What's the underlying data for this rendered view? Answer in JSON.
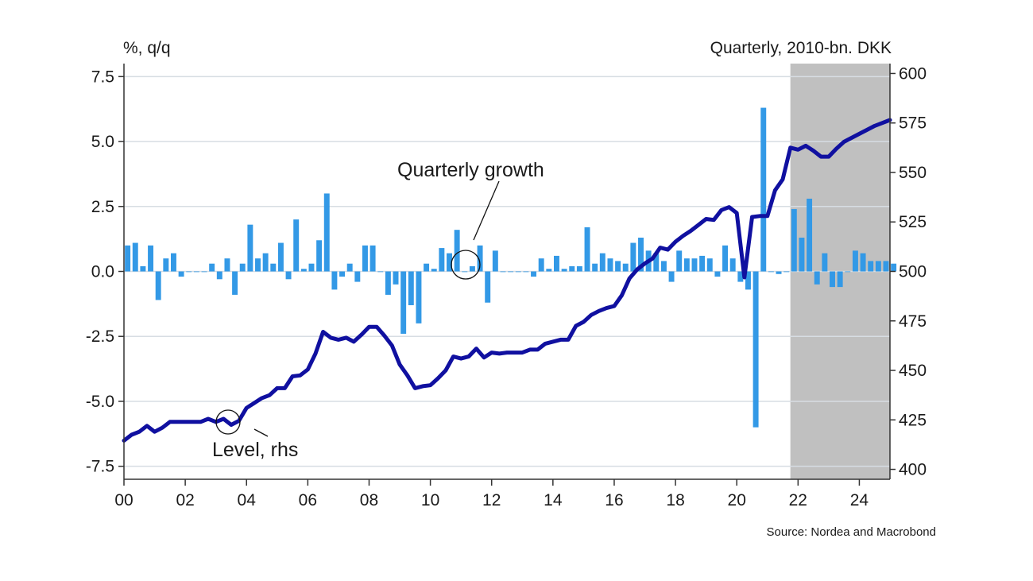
{
  "chart_data": {
    "type": "bar+line",
    "left_axis_label": "%, q/q",
    "right_axis_label": "Quarterly, 2010-bn. DKK",
    "source": "Source: Nordea and Macrobond",
    "annotations": {
      "growth": "Quarterly growth",
      "level": "Level, rhs"
    },
    "x_ticks": [
      "00",
      "02",
      "04",
      "06",
      "08",
      "10",
      "12",
      "14",
      "16",
      "18",
      "20",
      "22",
      "24"
    ],
    "x_tick_years": [
      2000,
      2002,
      2004,
      2006,
      2008,
      2010,
      2012,
      2014,
      2016,
      2018,
      2020,
      2022,
      2024
    ],
    "x_range": [
      2000,
      2025
    ],
    "left_ticks": [
      "7.5",
      "5.0",
      "2.5",
      "0.0",
      "-2.5",
      "-5.0",
      "-7.5"
    ],
    "left_tick_values": [
      7.5,
      5.0,
      2.5,
      0.0,
      -2.5,
      -5.0,
      -7.5
    ],
    "ylim_left": [
      -8.0,
      8.0
    ],
    "right_ticks": [
      "600",
      "575",
      "550",
      "525",
      "500",
      "475",
      "450",
      "425",
      "400"
    ],
    "right_tick_values": [
      600,
      575,
      550,
      525,
      500,
      475,
      450,
      425,
      400
    ],
    "ylim_right": [
      395,
      605
    ],
    "forecast_shading": {
      "from": 2021.75,
      "to": 2025.0
    },
    "colors": {
      "bars": "#3399e6",
      "level": "#1010a0",
      "shade": "#c0c0c0",
      "grid": "#d7dde3"
    },
    "series": [
      {
        "name": "Quarterly growth",
        "kind": "bar",
        "axis": "left",
        "start": 2000.0,
        "step": 0.25,
        "values": [
          1.0,
          1.1,
          0.2,
          1.0,
          -1.1,
          0.5,
          0.7,
          -0.2,
          0.0,
          0.0,
          0.0,
          0.3,
          -0.3,
          0.5,
          -0.9,
          0.3,
          1.8,
          0.5,
          0.7,
          0.3,
          1.1,
          -0.3,
          2.0,
          0.1,
          0.3,
          1.2,
          3.0,
          -0.7,
          -0.2,
          0.3,
          -0.4,
          1.0,
          1.0,
          0.0,
          -0.9,
          -0.5,
          -2.4,
          -1.3,
          -2.0,
          0.3,
          0.1,
          0.9,
          0.7,
          1.6,
          0.0,
          0.2,
          1.0,
          -1.2,
          0.8,
          0.0,
          0.0,
          0.0,
          0.0,
          -0.2,
          0.5,
          0.1,
          0.6,
          0.1,
          0.2,
          0.2,
          1.7,
          0.3,
          0.7,
          0.5,
          0.4,
          0.3,
          1.1,
          1.3,
          0.8,
          0.7,
          0.4,
          -0.4,
          0.8,
          0.5,
          0.5,
          0.6,
          0.5,
          -0.2,
          1.0,
          0.5,
          -0.4,
          -0.7,
          -6.0,
          6.3,
          0.0,
          -0.1,
          0.0,
          2.4,
          1.3,
          2.8,
          -0.5,
          0.7,
          -0.6,
          -0.6,
          0.0,
          0.8,
          0.7,
          0.4,
          0.4,
          0.4,
          0.3
        ]
      },
      {
        "name": "Level, rhs",
        "kind": "line",
        "axis": "right",
        "x": [
          2000.0,
          2000.25,
          2000.5,
          2000.75,
          2001.0,
          2001.25,
          2001.5,
          2001.75,
          2002.0,
          2002.25,
          2002.5,
          2002.75,
          2003.0,
          2003.25,
          2003.5,
          2003.75,
          2004.0,
          2004.25,
          2004.5,
          2004.75,
          2005.0,
          2005.25,
          2005.5,
          2005.75,
          2006.0,
          2006.25,
          2006.5,
          2006.75,
          2007.0,
          2007.25,
          2007.5,
          2007.75,
          2008.0,
          2008.25,
          2008.5,
          2008.75,
          2009.0,
          2009.25,
          2009.5,
          2009.75,
          2010.0,
          2010.25,
          2010.5,
          2010.75,
          2011.0,
          2011.25,
          2011.5,
          2011.75,
          2012.0,
          2012.25,
          2012.5,
          2012.75,
          2013.0,
          2013.25,
          2013.5,
          2013.75,
          2014.0,
          2014.25,
          2014.5,
          2014.75,
          2015.0,
          2015.25,
          2015.5,
          2015.75,
          2016.0,
          2016.25,
          2016.5,
          2016.75,
          2017.0,
          2017.25,
          2017.5,
          2017.75,
          2018.0,
          2018.25,
          2018.5,
          2018.75,
          2019.0,
          2019.25,
          2019.5,
          2019.75,
          2020.0,
          2020.25,
          2020.5,
          2020.75,
          2021.0,
          2021.25,
          2021.5,
          2021.75,
          2022.0,
          2022.25,
          2022.5,
          2022.75,
          2023.0,
          2023.25,
          2023.5,
          2023.75,
          2024.0,
          2024.25,
          2024.5,
          2024.75,
          2025.0
        ],
        "values": [
          414.5,
          417.5,
          419,
          422,
          419,
          421,
          424,
          424,
          424,
          424,
          424,
          425.5,
          424,
          425.5,
          422.5,
          424.5,
          431,
          433.5,
          436,
          437.5,
          441,
          441,
          447,
          447.5,
          450.5,
          458.5,
          469.5,
          466.5,
          465.5,
          466.5,
          464.5,
          468,
          472,
          472,
          467.5,
          462.5,
          453,
          447.5,
          441,
          442,
          442.5,
          446,
          450,
          457,
          456,
          457,
          461,
          456.5,
          459,
          458.5,
          459,
          459,
          459,
          460.5,
          460.5,
          463.5,
          464.5,
          465.5,
          465.5,
          472.5,
          474.5,
          478,
          480,
          481.5,
          482.5,
          488,
          496.5,
          501,
          504,
          506.5,
          512,
          511,
          515,
          518,
          520.5,
          523.5,
          526.5,
          526,
          531,
          532.5,
          529.5,
          497,
          527.5,
          528,
          528,
          541,
          546.5,
          562.5,
          561.5,
          563.5,
          561,
          558,
          558,
          562,
          565.5,
          567.5,
          569.5,
          571.5,
          573.5,
          575,
          576.5
        ]
      }
    ]
  }
}
